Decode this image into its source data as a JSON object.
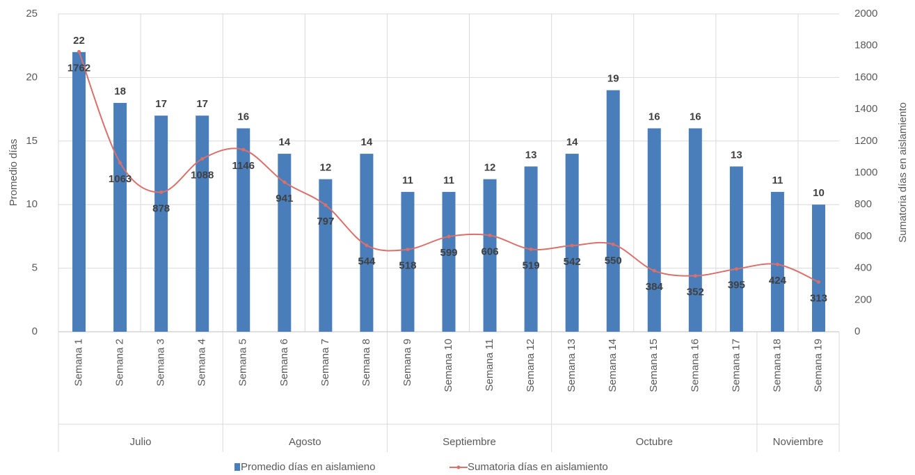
{
  "chart_data": {
    "type": "bar_line",
    "categories": [
      "Semana 1",
      "Semana 2",
      "Semana 3",
      "Semana 4",
      "Semana 5",
      "Semana 6",
      "Semana 7",
      "Semana 8",
      "Semana 9",
      "Semana 10",
      "Semana 11",
      "Semana 12",
      "Semana 13",
      "Semana 14",
      "Semana 15",
      "Semana 16",
      "Semana 17",
      "Semana 18",
      "Semana 19"
    ],
    "category_groups": [
      "Julio",
      "Julio",
      "Julio",
      "Julio",
      "Agosto",
      "Agosto",
      "Agosto",
      "Agosto",
      "Septiembre",
      "Septiembre",
      "Septiembre",
      "Septiembre",
      "Octubre",
      "Octubre",
      "Octubre",
      "Octubre",
      "Octubre",
      "Noviembre",
      "Noviembre"
    ],
    "series": [
      {
        "name": "Promedio días en aislamieno",
        "color": "#4a7ebb",
        "type": "bar",
        "values": [
          22,
          18,
          17,
          17,
          16,
          14,
          12,
          14,
          11,
          11,
          12,
          13,
          14,
          19,
          16,
          16,
          13,
          11,
          10
        ]
      },
      {
        "name": "Sumatoria días en aislamiento",
        "color": "#d9706c",
        "type": "line",
        "axis": "y2",
        "values": [
          1762,
          1063,
          878,
          1088,
          1146,
          941,
          797,
          544,
          518,
          599,
          606,
          519,
          542,
          550,
          384,
          352,
          395,
          424,
          313
        ]
      }
    ],
    "ylabel": "Promedio días",
    "y2label": "Sumatoria días en aislamiento",
    "ylim": [
      0,
      25
    ],
    "yticks": [
      0,
      5,
      10,
      15,
      20,
      25
    ],
    "y2lim": [
      0,
      2000
    ],
    "y2ticks": [
      0,
      200,
      400,
      600,
      800,
      1000,
      1200,
      1400,
      1600,
      1800,
      2000
    ],
    "grid": true,
    "legend": "bottom"
  }
}
